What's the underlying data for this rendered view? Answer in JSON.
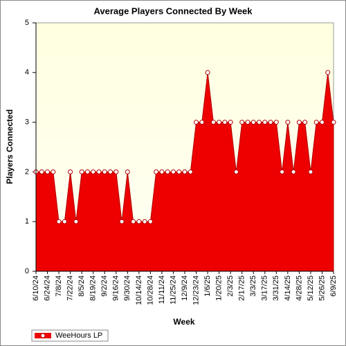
{
  "chart_data": {
    "type": "area",
    "title": "Average Players Connected By Week",
    "x_label": "Week",
    "y_label": "Players Connected",
    "categories": [
      "6/10/24",
      null,
      "6/24/24",
      null,
      "7/8/24",
      null,
      "7/22/24",
      null,
      "8/5/24",
      null,
      "8/19/24",
      null,
      "9/2/24",
      null,
      "9/16/24",
      null,
      "9/30/24",
      null,
      "10/14/24",
      null,
      "10/28/24",
      null,
      "11/11/24",
      null,
      "11/25/24",
      null,
      "12/9/24",
      null,
      "12/23/24",
      null,
      "1/6/25",
      null,
      "1/20/25",
      null,
      "2/3/25",
      null,
      "2/17/25",
      null,
      "3/3/25",
      null,
      "3/17/25",
      null,
      "3/31/25",
      null,
      "4/14/25",
      null,
      "4/28/25",
      null,
      "5/12/25",
      null,
      "5/26/25",
      null,
      "6/9/25"
    ],
    "series": [
      {
        "name": "WeeHours LP",
        "color": "#ee0000",
        "values": [
          2,
          2,
          2,
          2,
          1,
          1,
          2,
          1,
          2,
          2,
          2,
          2,
          2,
          2,
          2,
          1,
          2,
          1,
          1,
          1,
          1,
          2,
          2,
          2,
          2,
          2,
          2,
          2,
          3,
          3,
          4,
          3,
          3,
          3,
          3,
          2,
          3,
          3,
          3,
          3,
          3,
          3,
          3,
          2,
          3,
          2,
          3,
          3,
          2,
          3,
          3,
          4,
          3
        ]
      }
    ],
    "ylim": [
      0,
      5
    ],
    "yticks": [
      0,
      1,
      2,
      3,
      4,
      5
    ],
    "legend": "bottom-left"
  }
}
